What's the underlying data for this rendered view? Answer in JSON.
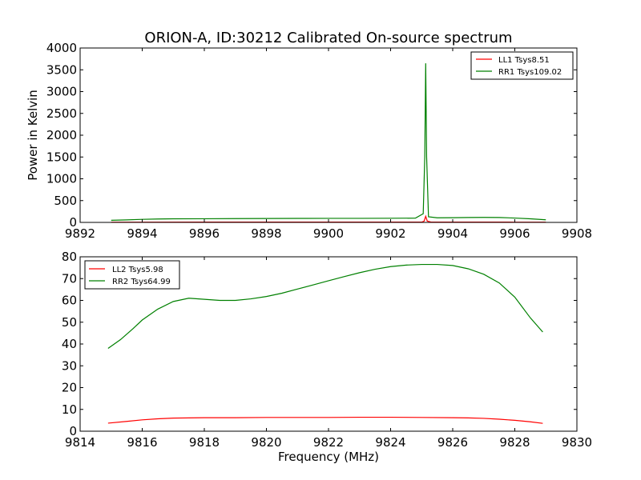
{
  "chart_data": [
    {
      "type": "line",
      "title": "ORION-A, ID:30212 Calibrated On-source spectrum",
      "xlabel": "",
      "ylabel": "Power in Kelvin",
      "xlim": [
        9892,
        9908
      ],
      "ylim": [
        0,
        4000
      ],
      "xticks": [
        9892,
        9894,
        9896,
        9898,
        9900,
        9902,
        9904,
        9906,
        9908
      ],
      "yticks": [
        0,
        500,
        1000,
        1500,
        2000,
        2500,
        3000,
        3500,
        4000
      ],
      "legend_position": "top-right",
      "grid": false,
      "series": [
        {
          "name": "LL1 Tsys8.51",
          "color": "#ff0000",
          "x": [
            9893.0,
            9894.0,
            9896.0,
            9898.0,
            9900.0,
            9902.0,
            9903.0,
            9903.08,
            9903.13,
            9903.18,
            9903.3,
            9904.0,
            9905.0,
            9906.0,
            9907.0
          ],
          "y": [
            5,
            6,
            7,
            7,
            7,
            7,
            7,
            30,
            140,
            30,
            7,
            7,
            7,
            6,
            5
          ]
        },
        {
          "name": "RR1 Tsys109.02",
          "color": "#008000",
          "x": [
            9893.0,
            9893.5,
            9894.0,
            9894.5,
            9895.0,
            9896.0,
            9897.0,
            9898.0,
            9899.0,
            9900.0,
            9901.0,
            9902.0,
            9902.8,
            9903.05,
            9903.1,
            9903.13,
            9903.16,
            9903.22,
            9903.5,
            9904.0,
            9904.5,
            9905.0,
            9905.5,
            9906.0,
            9906.5,
            9907.0
          ],
          "y": [
            48,
            58,
            70,
            78,
            82,
            84,
            87,
            90,
            92,
            93,
            93,
            95,
            98,
            200,
            1500,
            3650,
            1500,
            130,
            105,
            108,
            112,
            115,
            112,
            100,
            82,
            60
          ]
        }
      ]
    },
    {
      "type": "line",
      "title": "",
      "xlabel": "Frequency (MHz)",
      "ylabel": "",
      "xlim": [
        9814,
        9830
      ],
      "ylim": [
        0,
        80
      ],
      "xticks": [
        9814,
        9816,
        9818,
        9820,
        9822,
        9824,
        9826,
        9828,
        9830
      ],
      "yticks": [
        0,
        10,
        20,
        30,
        40,
        50,
        60,
        70,
        80
      ],
      "legend_position": "top-left",
      "grid": false,
      "series": [
        {
          "name": "LL2 Tsys5.98",
          "color": "#ff0000",
          "x": [
            9814.9,
            9815.5,
            9816.0,
            9816.5,
            9817.0,
            9818.0,
            9819.0,
            9820.0,
            9821.0,
            9822.0,
            9823.0,
            9824.0,
            9825.0,
            9826.0,
            9826.5,
            9827.0,
            9827.5,
            9828.0,
            9828.5,
            9828.9
          ],
          "y": [
            3.7,
            4.5,
            5.2,
            5.7,
            6.0,
            6.2,
            6.2,
            6.3,
            6.3,
            6.3,
            6.4,
            6.4,
            6.3,
            6.2,
            6.1,
            5.9,
            5.5,
            5.0,
            4.3,
            3.6
          ]
        },
        {
          "name": "RR2 Tsys64.99",
          "color": "#008000",
          "x": [
            9814.9,
            9815.3,
            9815.7,
            9816.0,
            9816.5,
            9817.0,
            9817.5,
            9818.0,
            9818.5,
            9819.0,
            9819.5,
            9820.0,
            9820.5,
            9821.0,
            9821.5,
            9822.0,
            9822.5,
            9823.0,
            9823.5,
            9824.0,
            9824.5,
            9825.0,
            9825.5,
            9826.0,
            9826.5,
            9827.0,
            9827.5,
            9828.0,
            9828.5,
            9828.9
          ],
          "y": [
            38,
            42,
            47,
            51,
            56,
            59.5,
            61,
            60.5,
            60,
            60,
            60.7,
            61.8,
            63.3,
            65.2,
            67.1,
            69,
            70.9,
            72.7,
            74.3,
            75.5,
            76.2,
            76.5,
            76.5,
            76,
            74.5,
            72,
            68,
            61.5,
            52,
            45.5
          ]
        }
      ]
    }
  ]
}
